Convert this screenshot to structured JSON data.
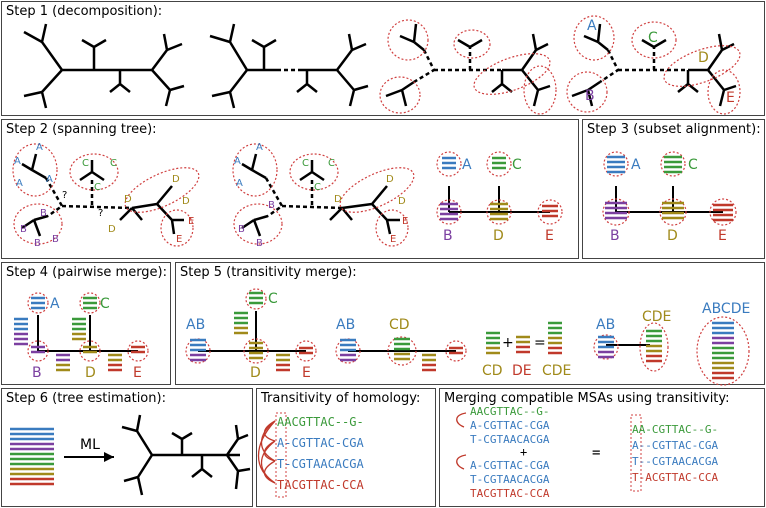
{
  "step1": {
    "title": "Step 1 (decomposition):",
    "labels": [
      "A",
      "B",
      "C",
      "D",
      "E"
    ]
  },
  "step2": {
    "title": "Step 2 (spanning tree):",
    "labels": [
      "A",
      "B",
      "C",
      "D",
      "E"
    ],
    "q": "?"
  },
  "step3": {
    "title": "Step 3 (subset alignment):",
    "labels": [
      "A",
      "B",
      "C",
      "D",
      "E"
    ]
  },
  "step4": {
    "title": "Step 4 (pairwise merge):",
    "labels": [
      "A",
      "B",
      "C",
      "D",
      "E"
    ]
  },
  "step5": {
    "title": "Step 5 (transitivity merge):",
    "labels": [
      "C",
      "AB",
      "E",
      "AB",
      "CD",
      "CD",
      "DE",
      "CDE",
      "AB",
      "CDE",
      "ABCDE"
    ],
    "plus": "+",
    "equals": "="
  },
  "step6": {
    "title": "Step 6 (tree estimation):",
    "arrow_label": "ML"
  },
  "homology": {
    "title": "Transitivity of homology:",
    "seqs": [
      "AACGTTAC--G-",
      "A-CGTTAC-CGA",
      "T-CGTAACACGA",
      "TACGTTAC-CCA"
    ]
  },
  "merging": {
    "title": "Merging compatible MSAs using transitivity:",
    "msa1": [
      "AACGTTAC--G-",
      "A-CGTTAC-CGA",
      "T-CGTAACACGA"
    ],
    "msa2": [
      "A-CGTTAC-CGA",
      "T-CGTAACACGA",
      "TACGTTAC-CCA"
    ],
    "result": [
      "AA-CGTTAC--G-",
      "A--CGTTAC-CGA",
      "T--CGTAACACGA",
      "T-ACGTTAC-CCA"
    ],
    "plus": "+",
    "equals": "="
  },
  "colors": {
    "A": "#3a7bbf",
    "B": "#7b3fa0",
    "C": "#3b9a3b",
    "D": "#a08a1a",
    "E": "#c0392b",
    "circle": "#d04040"
  }
}
